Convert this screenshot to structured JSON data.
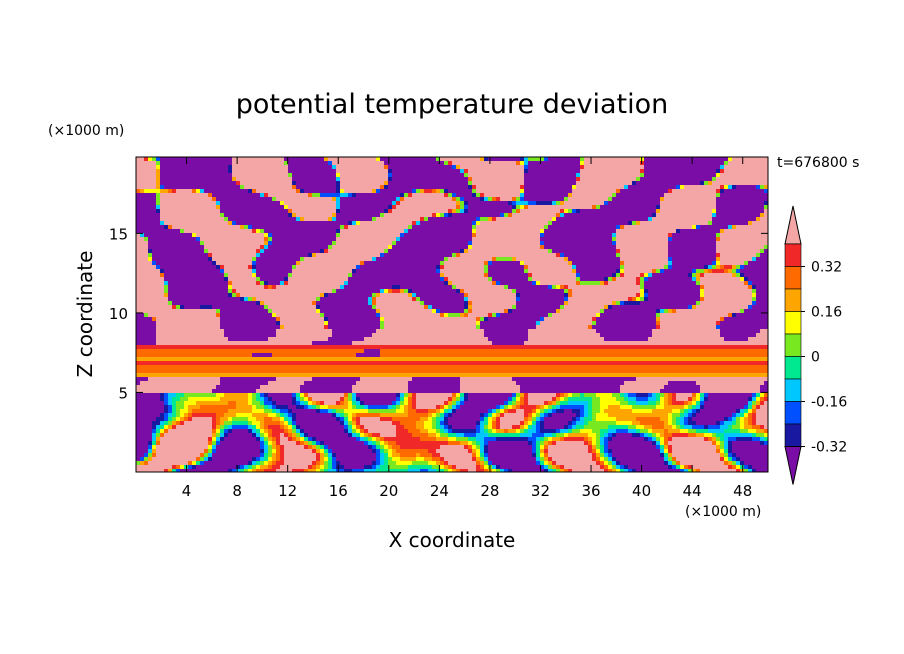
{
  "chart_data": {
    "type": "heatmap",
    "title": "potential temperature deviation",
    "time_label": "t=676800 s",
    "xlabel": "X coordinate",
    "ylabel": "Z coordinate",
    "x_unit": "(×1000 m)",
    "y_unit": "(×1000 m)",
    "xlim": [
      0,
      50
    ],
    "ylim": [
      0,
      19.8
    ],
    "x_ticks": [
      4,
      8,
      12,
      16,
      20,
      24,
      28,
      32,
      36,
      40,
      44,
      48
    ],
    "y_ticks": [
      5,
      10,
      15
    ],
    "grid": false,
    "colorbar": {
      "position": "right",
      "tick_labels": [
        "0.32",
        "0.16",
        "0",
        "-0.16",
        "-0.32"
      ],
      "tick_values": [
        0.32,
        0.16,
        0,
        -0.16,
        -0.32
      ],
      "levels": [
        -0.4,
        -0.32,
        -0.24,
        -0.16,
        -0.08,
        0,
        0.08,
        0.16,
        0.24,
        0.32,
        0.4
      ],
      "colors": [
        "#7A0DA6",
        "#1818A0",
        "#0050FF",
        "#00C8FF",
        "#00E890",
        "#78E820",
        "#FFFF00",
        "#FFA500",
        "#FF6A00",
        "#F02828",
        "#F4A6A6"
      ],
      "extend": "both"
    }
  }
}
